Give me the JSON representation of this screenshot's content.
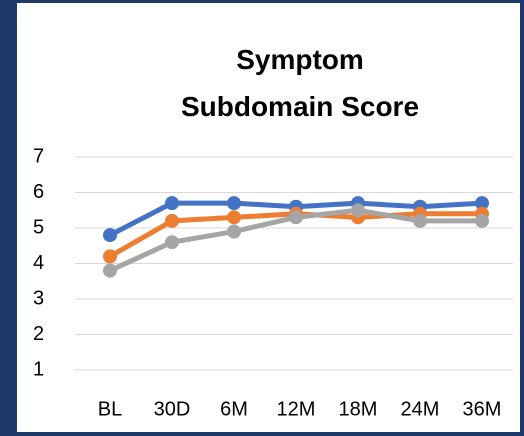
{
  "chart_data": {
    "type": "line",
    "title": "Symptom Subdomain Score",
    "categories": [
      "BL",
      "30D",
      "6M",
      "12M",
      "18M",
      "24M",
      "36M"
    ],
    "series": [
      {
        "color": "#4472c4",
        "values": [
          4.8,
          5.7,
          5.7,
          5.6,
          5.7,
          5.6,
          5.7
        ]
      },
      {
        "color": "#ed7d31",
        "values": [
          4.2,
          5.2,
          5.3,
          5.4,
          5.3,
          5.4,
          5.4
        ]
      },
      {
        "color": "#a5a5a5",
        "values": [
          3.8,
          4.6,
          4.9,
          5.3,
          5.5,
          5.2,
          5.2
        ]
      }
    ],
    "ylim": [
      1,
      7
    ],
    "yticks": [
      1,
      2,
      3,
      4,
      5,
      6,
      7
    ],
    "grid": true
  }
}
